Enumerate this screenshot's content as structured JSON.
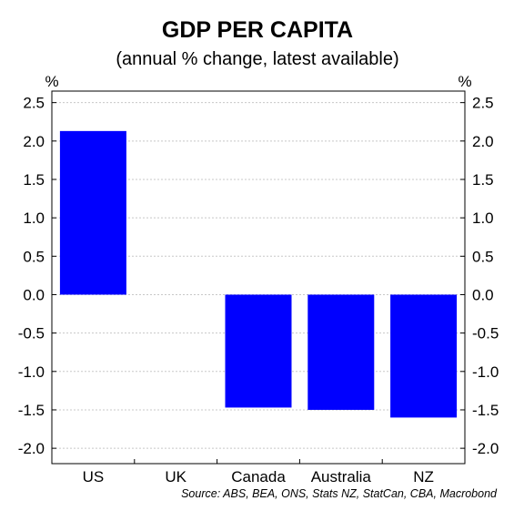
{
  "chart_data": {
    "type": "bar",
    "title": "GDP PER CAPITA",
    "subtitle": "(annual % change, latest available)",
    "ylabel_left": "%",
    "ylabel_right": "%",
    "categories": [
      "US",
      "UK",
      "Canada",
      "Australia",
      "NZ"
    ],
    "values": [
      2.13,
      null,
      -1.47,
      -1.5,
      -1.6
    ],
    "ylim": [
      -2.2,
      2.65
    ],
    "yticks": [
      2.5,
      2.0,
      1.5,
      1.0,
      0.5,
      0.0,
      -0.5,
      -1.0,
      -1.5,
      -2.0
    ],
    "ytick_labels": [
      "2.5",
      "2.0",
      "1.5",
      "1.0",
      "0.5",
      "0.0",
      "-0.5",
      "-1.0",
      "-1.5",
      "-2.0"
    ],
    "grid": true,
    "bar_color": "#0000ff",
    "source": "Source: ABS, BEA, ONS, Stats NZ, StatCan, CBA, Macrobond"
  }
}
